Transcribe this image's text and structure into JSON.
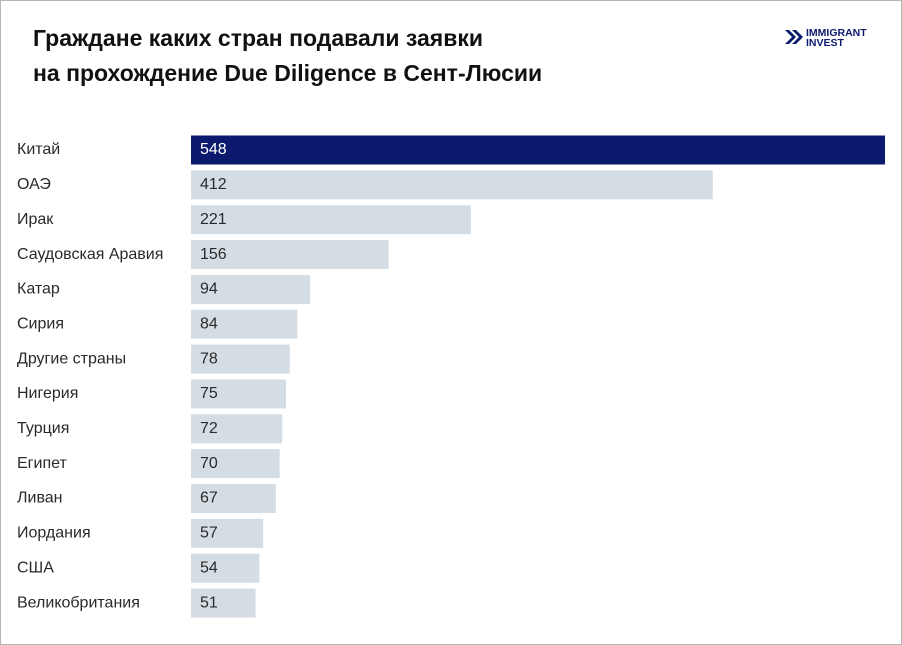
{
  "chart_data": {
    "type": "bar",
    "orientation": "horizontal",
    "title": [
      "Граждане каких стран подавали заявки",
      "на прохождение Due Diligence в Сент-Люсии"
    ],
    "brand": [
      "IMMIGRANT",
      "INVEST"
    ],
    "categories": [
      "Китай",
      "ОАЭ",
      "Ирак",
      "Саудовская Аравия",
      "Катар",
      "Сирия",
      "Другие страны",
      "Нигерия",
      "Турция",
      "Египет",
      "Ливан",
      "Иордания",
      "США",
      "Великобритания"
    ],
    "values": [
      548,
      412,
      221,
      156,
      94,
      84,
      78,
      75,
      72,
      70,
      67,
      57,
      54,
      51
    ],
    "colors": [
      "#0b1a6e",
      "#d5dde4",
      "#d5dde4",
      "#d5dde4",
      "#d5dde4",
      "#d5dde4",
      "#d5dde4",
      "#d5dde4",
      "#d5dde4",
      "#d5dde4",
      "#d5dde4",
      "#d5dde4",
      "#d5dde4",
      "#d5dde4"
    ]
  }
}
